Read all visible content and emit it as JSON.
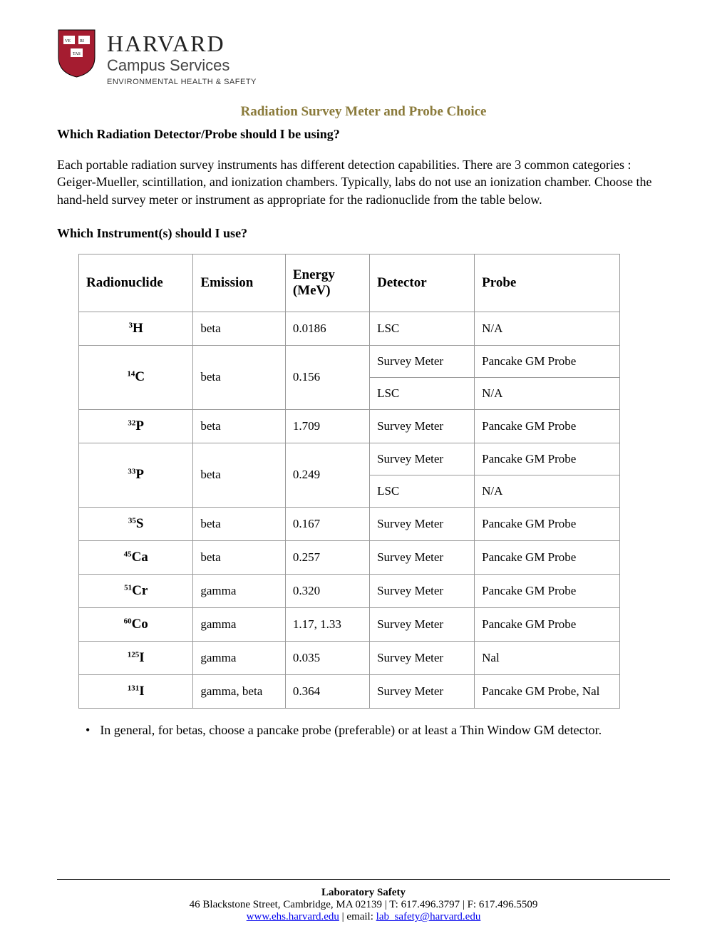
{
  "header": {
    "org": "HARVARD",
    "dept": "Campus Services",
    "sub": "ENVIRONMENTAL HEALTH & SAFETY",
    "shield_color": "#a51c30",
    "shield_text_color": "#ffffff"
  },
  "title": "Radiation Survey Meter and Probe Choice",
  "q1": "Which Radiation Detector/Probe should I be using?",
  "para": "Each portable radiation survey instruments has different detection capabilities. There are 3 common categories : Geiger-Mueller, scintillation, and ionization chambers. Typically, labs do not use an ionization chamber. Choose the hand-held survey meter or instrument as appropriate for the radionuclide from the table below.",
  "q2": "Which Instrument(s) should I use?",
  "table": {
    "columns": [
      "Radionuclide",
      "Emission",
      "Energy (MeV)",
      "Detector",
      "Probe"
    ],
    "col_widths": [
      "150px",
      "120px",
      "110px",
      "145px",
      "225px"
    ],
    "rows": [
      {
        "mass": "3",
        "sym": "H",
        "emission": "beta",
        "energy": "0.0186",
        "dp": [
          [
            "LSC",
            "N/A"
          ]
        ]
      },
      {
        "mass": "14",
        "sym": "C",
        "emission": "beta",
        "energy": "0.156",
        "dp": [
          [
            "Survey Meter",
            "Pancake GM Probe"
          ],
          [
            "LSC",
            "N/A"
          ]
        ]
      },
      {
        "mass": "32",
        "sym": "P",
        "emission": "beta",
        "energy": "1.709",
        "dp": [
          [
            "Survey Meter",
            "Pancake GM Probe"
          ]
        ]
      },
      {
        "mass": "33",
        "sym": "P",
        "emission": "beta",
        "energy": "0.249",
        "dp": [
          [
            "Survey Meter",
            "Pancake GM Probe"
          ],
          [
            "LSC",
            "N/A"
          ]
        ]
      },
      {
        "mass": "35",
        "sym": "S",
        "emission": "beta",
        "energy": "0.167",
        "dp": [
          [
            "Survey Meter",
            "Pancake GM Probe"
          ]
        ]
      },
      {
        "mass": "45",
        "sym": "Ca",
        "emission": "beta",
        "energy": "0.257",
        "dp": [
          [
            "Survey Meter",
            "Pancake GM Probe"
          ]
        ]
      },
      {
        "mass": "51",
        "sym": "Cr",
        "emission": "gamma",
        "energy": "0.320",
        "dp": [
          [
            "Survey Meter",
            "Pancake GM Probe"
          ]
        ]
      },
      {
        "mass": "60",
        "sym": "Co",
        "emission": "gamma",
        "energy": "1.17, 1.33",
        "dp": [
          [
            "Survey Meter",
            "Pancake GM Probe"
          ]
        ]
      },
      {
        "mass": "125",
        "sym": "I",
        "emission": "gamma",
        "energy": "0.035",
        "dp": [
          [
            "Survey Meter",
            "Nal"
          ]
        ]
      },
      {
        "mass": "131",
        "sym": "I",
        "emission": "gamma, beta",
        "energy": "0.364",
        "dp": [
          [
            "Survey Meter",
            "Pancake GM Probe, Nal"
          ]
        ]
      }
    ]
  },
  "bullet": "In general, for betas, choose a pancake probe (preferable) or at least a Thin Window GM detector.",
  "footer": {
    "heading": "Laboratory Safety",
    "address": "46 Blackstone Street, Cambridge, MA 02139 | T: 617.496.3797 | F: 617.496.5509",
    "url": "www.ehs.harvard.edu",
    "email_label": " | email: ",
    "email": "lab_safety@harvard.edu"
  }
}
